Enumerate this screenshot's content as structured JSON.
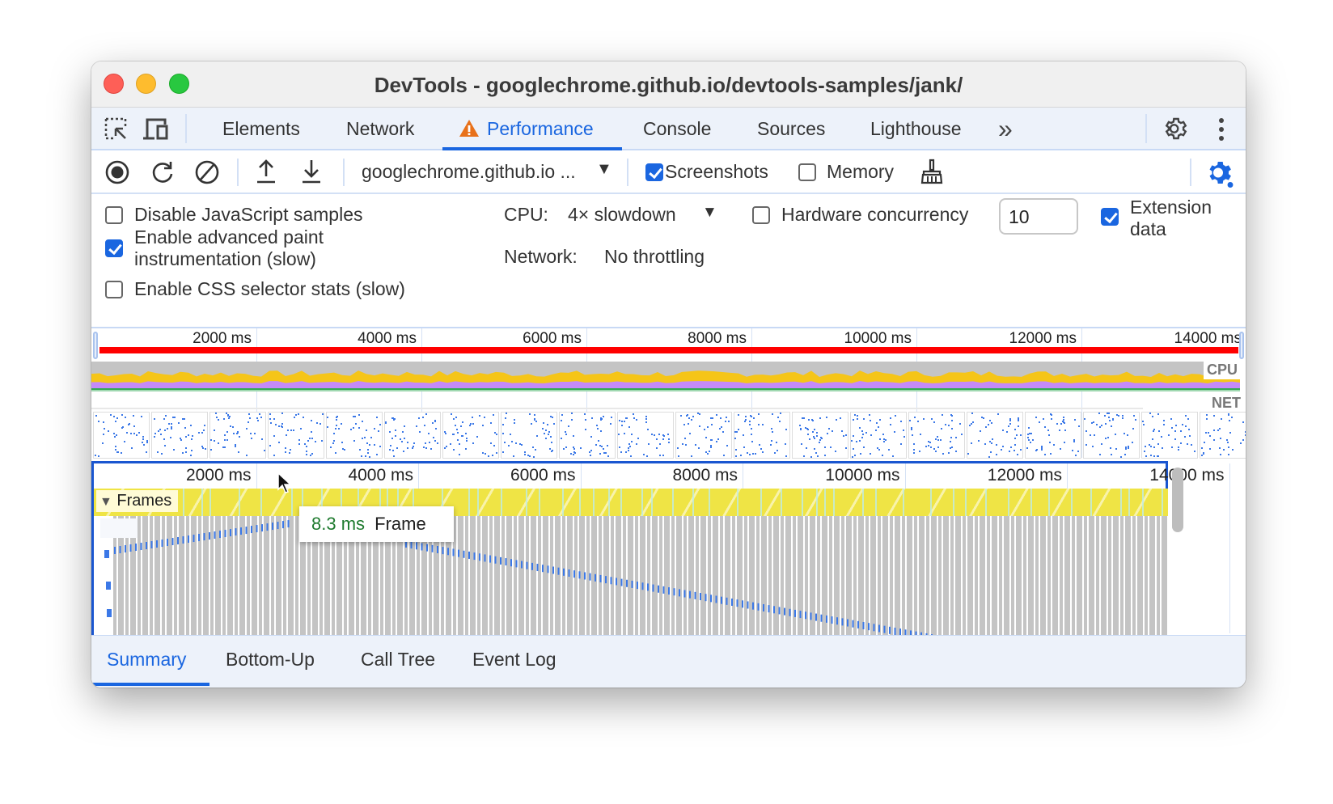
{
  "window": {
    "title": "DevTools - googlechrome.github.io/devtools-samples/jank/"
  },
  "tabs": {
    "items": [
      {
        "label": "Elements"
      },
      {
        "label": "Network"
      },
      {
        "label": "Performance",
        "active": true,
        "icon": "warning-icon"
      },
      {
        "label": "Console"
      },
      {
        "label": "Sources"
      },
      {
        "label": "Lighthouse"
      }
    ],
    "more_label": "»"
  },
  "toolbar": {
    "url_selector": "googlechrome.github.io ...",
    "screenshots_label": "Screenshots",
    "screenshots_checked": true,
    "memory_label": "Memory",
    "memory_checked": false
  },
  "settings": {
    "disable_js_samples": {
      "label": "Disable JavaScript samples",
      "checked": false
    },
    "advanced_paint": {
      "label_line1": "Enable advanced paint",
      "label_line2": "instrumentation (slow)",
      "checked": true
    },
    "css_selector_stats": {
      "label": "Enable CSS selector stats (slow)",
      "checked": false
    },
    "cpu_label": "CPU:",
    "cpu_value": "4× slowdown",
    "network_label": "Network:",
    "network_value": "No throttling",
    "hardware_concurrency": {
      "label": "Hardware concurrency",
      "checked": false,
      "value": "10"
    },
    "extension_data": {
      "label_line1": "Extension",
      "label_line2": "data",
      "checked": true
    }
  },
  "overview": {
    "ticks": [
      "2000 ms",
      "4000 ms",
      "6000 ms",
      "8000 ms",
      "10000 ms",
      "12000 ms",
      "14000 ms"
    ],
    "cpu_label": "CPU",
    "net_label": "NET",
    "colors": {
      "long_task": "#ff0000",
      "scripting": "#f5c518",
      "rendering": "#c58af9",
      "painting": "#34a853",
      "idle": "#c4c4c4"
    }
  },
  "timeline": {
    "ticks": [
      "2000 ms",
      "4000 ms",
      "6000 ms",
      "8000 ms",
      "10000 ms",
      "12000 ms",
      "14000 ms"
    ],
    "frames_label": "Frames",
    "tooltip": {
      "duration": "8.3 ms",
      "label": "Frame"
    }
  },
  "bottom_tabs": [
    {
      "label": "Summary",
      "active": true
    },
    {
      "label": "Bottom-Up"
    },
    {
      "label": "Call Tree"
    },
    {
      "label": "Event Log"
    }
  ]
}
